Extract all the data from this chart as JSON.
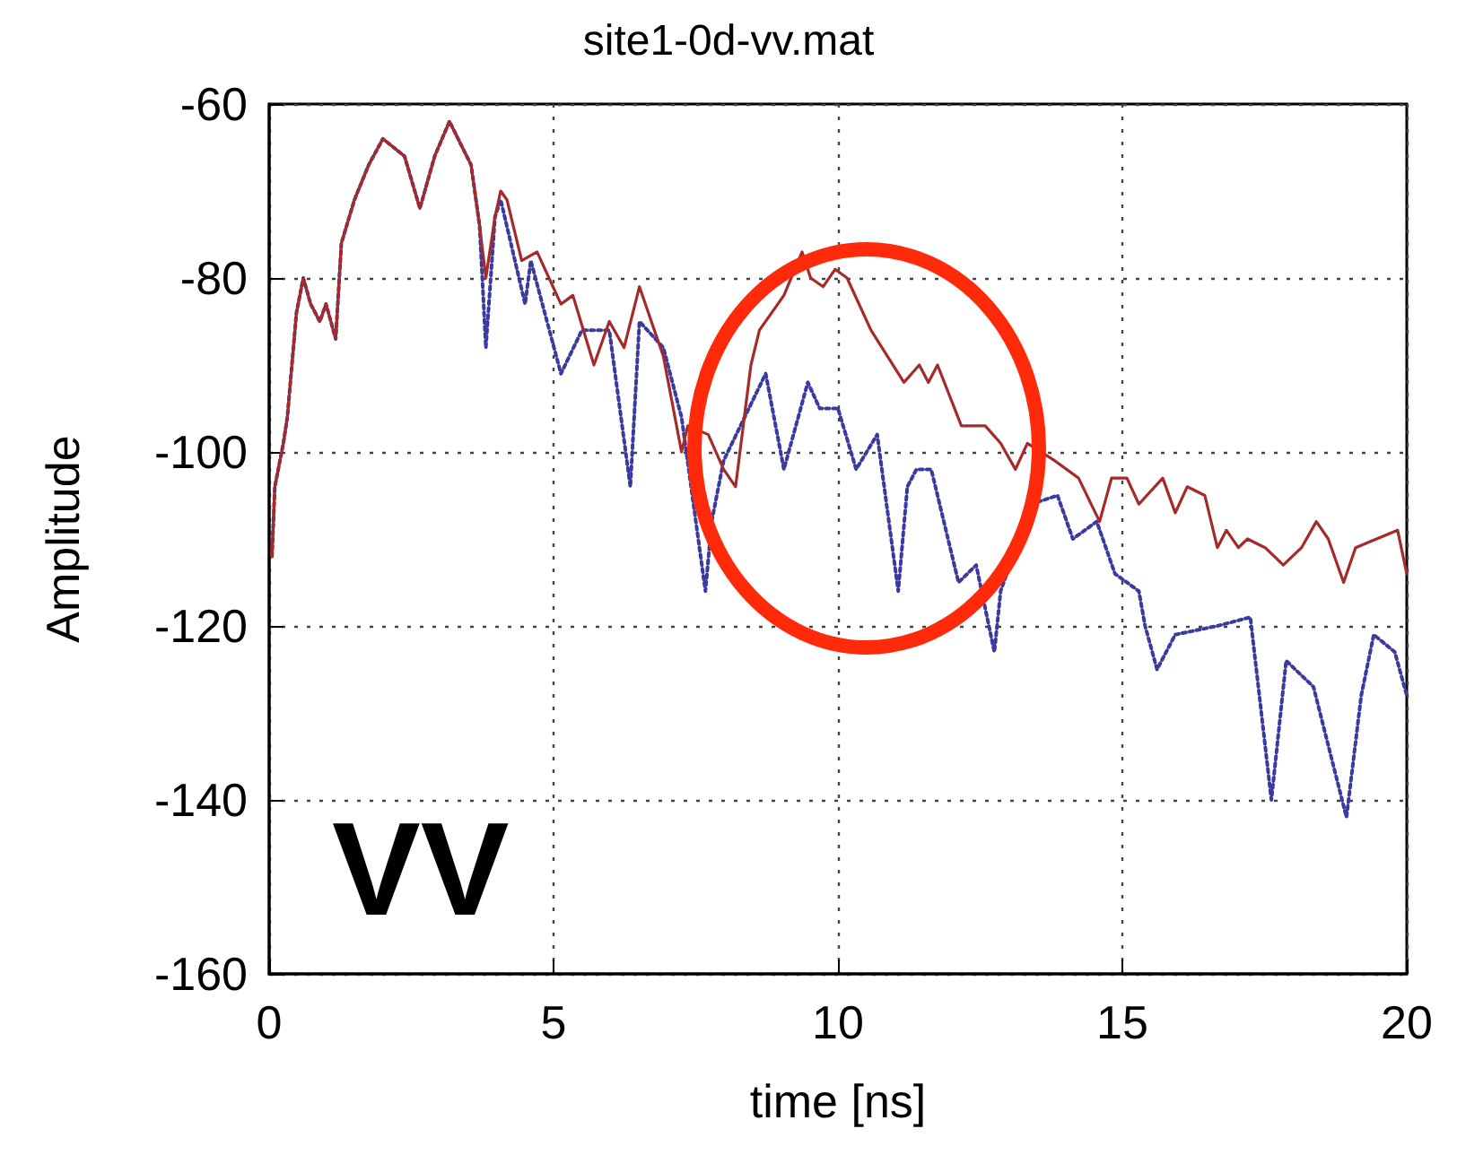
{
  "chart_data": {
    "type": "line",
    "title": "site1-0d-vv.mat",
    "xlabel": "time [ns]",
    "ylabel": "Amplitude",
    "annotations": [
      "VV"
    ],
    "xlim": [
      0,
      20
    ],
    "xticks": [
      0,
      5,
      10,
      15,
      20
    ],
    "ylim": [
      -160,
      -60
    ],
    "yticks": [
      -160,
      -140,
      -120,
      -100,
      -80,
      -60
    ],
    "grid": true,
    "marker": "none",
    "series": [
      {
        "color": "#a52a2a",
        "line_style": "solid",
        "x": [
          0.05,
          0.1,
          0.25,
          0.32,
          0.48,
          0.6,
          0.73,
          0.89,
          1.0,
          1.17,
          1.27,
          1.5,
          1.75,
          2.0,
          2.38,
          2.65,
          2.91,
          3.17,
          3.55,
          3.7,
          3.81,
          3.97,
          4.07,
          4.18,
          4.44,
          4.71,
          5.13,
          5.34,
          5.71,
          5.98,
          6.24,
          6.51,
          6.93,
          7.25,
          7.36,
          7.72,
          7.99,
          8.2,
          8.47,
          8.62,
          9.05,
          9.37,
          9.52,
          9.74,
          9.95,
          10.16,
          10.58,
          11.16,
          11.43,
          11.59,
          11.75,
          12.17,
          12.59,
          12.86,
          13.12,
          13.33,
          13.81,
          14.23,
          14.6,
          14.81,
          15.08,
          15.29,
          15.71,
          15.93,
          16.14,
          16.45,
          16.67,
          16.83,
          17.04,
          17.2,
          17.51,
          17.83,
          18.15,
          18.41,
          18.62,
          18.89,
          19.1,
          19.47,
          19.84,
          20.0
        ],
        "values": [
          -112,
          -104,
          -99,
          -96,
          -84,
          -80,
          -83,
          -85,
          -83,
          -87,
          -76,
          -71,
          -67,
          -64,
          -66,
          -72,
          -66,
          -62,
          -67,
          -74,
          -80,
          -73,
          -70,
          -71,
          -78,
          -77,
          -83,
          -82,
          -90,
          -85,
          -88,
          -81,
          -89,
          -100,
          -97,
          -98,
          -102,
          -104,
          -90,
          -86,
          -82,
          -77,
          -80,
          -81,
          -79,
          -80,
          -86,
          -92,
          -90,
          -92,
          -90,
          -97,
          -97,
          -99,
          -102,
          -99,
          -101,
          -103,
          -108,
          -103,
          -103,
          -106,
          -103,
          -107,
          -104,
          -105,
          -111,
          -109,
          -111,
          -110,
          -111,
          -113,
          -111,
          -108,
          -110,
          -115,
          -111,
          -110,
          -109,
          -114
        ]
      },
      {
        "color": "#3a3aa0",
        "line_style": "dotted",
        "x": [
          0.05,
          0.1,
          0.25,
          0.32,
          0.48,
          0.6,
          0.73,
          0.89,
          1.0,
          1.17,
          1.27,
          1.5,
          1.75,
          2.0,
          2.38,
          2.65,
          2.91,
          3.17,
          3.55,
          3.7,
          3.81,
          3.97,
          4.07,
          4.5,
          4.6,
          5.13,
          5.5,
          5.98,
          6.35,
          6.51,
          6.93,
          7.25,
          7.67,
          7.78,
          7.99,
          8.73,
          9.05,
          9.47,
          9.68,
          10.0,
          10.32,
          10.69,
          11.06,
          11.22,
          11.38,
          11.64,
          12.12,
          12.43,
          12.75,
          12.86,
          13.4,
          13.86,
          14.13,
          14.55,
          14.87,
          15.29,
          15.4,
          15.61,
          15.93,
          16.67,
          17.25,
          17.62,
          17.88,
          18.36,
          18.94,
          19.2,
          19.42,
          19.79,
          20.0
        ],
        "values": [
          -112,
          -104,
          -99,
          -96,
          -84,
          -80,
          -83,
          -85,
          -83,
          -87,
          -76,
          -71,
          -67,
          -64,
          -66,
          -72,
          -66,
          -62,
          -67,
          -74,
          -88,
          -73,
          -71,
          -83,
          -78,
          -91,
          -86,
          -86,
          -104,
          -85,
          -88,
          -96,
          -116,
          -108,
          -101,
          -91,
          -102,
          -92,
          -95,
          -95,
          -102,
          -98,
          -116,
          -104,
          -102,
          -102,
          -115,
          -113,
          -123,
          -116,
          -106,
          -105,
          -110,
          -108,
          -114,
          -116,
          -120,
          -125,
          -121,
          -120,
          -119,
          -140,
          -124,
          -127,
          -142,
          -128,
          -121,
          -123,
          -128
        ]
      }
    ]
  }
}
